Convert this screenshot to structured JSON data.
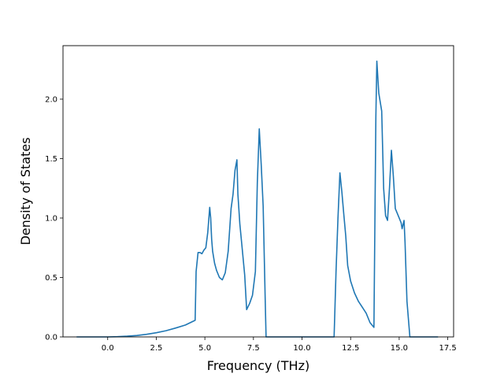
{
  "chart_data": {
    "type": "line",
    "title": "",
    "xlabel": "Frequency (THz)",
    "ylabel": "Density of States",
    "xlim": [
      -2.3,
      17.8
    ],
    "ylim": [
      0,
      2.45
    ],
    "grid": false,
    "legend": "none",
    "line_color": "#1f77b4",
    "xticks": [
      {
        "value": 0.0,
        "label": "0.0"
      },
      {
        "value": 2.5,
        "label": "2.5"
      },
      {
        "value": 5.0,
        "label": "5.0"
      },
      {
        "value": 7.5,
        "label": "7.5"
      },
      {
        "value": 10.0,
        "label": "10.0"
      },
      {
        "value": 12.5,
        "label": "12.5"
      },
      {
        "value": 15.0,
        "label": "15.0"
      },
      {
        "value": 17.5,
        "label": "17.5"
      }
    ],
    "yticks": [
      {
        "value": 0.0,
        "label": "0.0"
      },
      {
        "value": 0.5,
        "label": "0.5"
      },
      {
        "value": 1.0,
        "label": "1.0"
      },
      {
        "value": 1.5,
        "label": "1.5"
      },
      {
        "value": 2.0,
        "label": "2.0"
      }
    ],
    "series": [
      {
        "x": [
          -1.6,
          -1.0,
          -0.5,
          0.0,
          0.5,
          1.0,
          1.5,
          2.0,
          2.5,
          3.0,
          3.5,
          4.0,
          4.5,
          4.55,
          4.65,
          4.75,
          4.85,
          4.95,
          5.05,
          5.15,
          5.25,
          5.3,
          5.35,
          5.4,
          5.5,
          5.6,
          5.75,
          5.9,
          6.05,
          6.2,
          6.35,
          6.45,
          6.55,
          6.65,
          6.7,
          6.8,
          6.9,
          7.05,
          7.15,
          7.3,
          7.45,
          7.6,
          7.7,
          7.8,
          7.9,
          8.0,
          8.1,
          8.15,
          8.3,
          9.0,
          10.0,
          11.0,
          11.65,
          11.75,
          11.85,
          11.95,
          12.05,
          12.15,
          12.25,
          12.35,
          12.5,
          12.7,
          12.9,
          13.1,
          13.3,
          13.5,
          13.7,
          13.8,
          13.85,
          13.95,
          14.1,
          14.2,
          14.3,
          14.4,
          14.5,
          14.6,
          14.7,
          14.8,
          15.0,
          15.1,
          15.15,
          15.25,
          15.3,
          15.4,
          15.55,
          15.6,
          16.0,
          16.5,
          17.0
        ],
        "y": [
          0.0,
          0.0,
          0.0,
          0.0,
          0.002,
          0.006,
          0.012,
          0.022,
          0.035,
          0.052,
          0.075,
          0.1,
          0.14,
          0.55,
          0.71,
          0.71,
          0.7,
          0.73,
          0.75,
          0.88,
          1.09,
          1.0,
          0.82,
          0.72,
          0.62,
          0.56,
          0.5,
          0.48,
          0.54,
          0.72,
          1.08,
          1.2,
          1.4,
          1.49,
          1.2,
          0.95,
          0.78,
          0.52,
          0.23,
          0.28,
          0.35,
          0.55,
          1.3,
          1.75,
          1.45,
          1.1,
          0.35,
          0.0,
          0.0,
          0.0,
          0.0,
          0.0,
          0.0,
          0.55,
          1.0,
          1.38,
          1.22,
          1.03,
          0.85,
          0.6,
          0.47,
          0.37,
          0.3,
          0.25,
          0.2,
          0.12,
          0.08,
          1.85,
          2.32,
          2.05,
          1.9,
          1.25,
          1.02,
          0.98,
          1.25,
          1.57,
          1.35,
          1.08,
          1.0,
          0.96,
          0.91,
          0.98,
          0.8,
          0.3,
          0.0,
          0.0,
          0.0,
          0.0,
          0.0
        ]
      }
    ]
  }
}
